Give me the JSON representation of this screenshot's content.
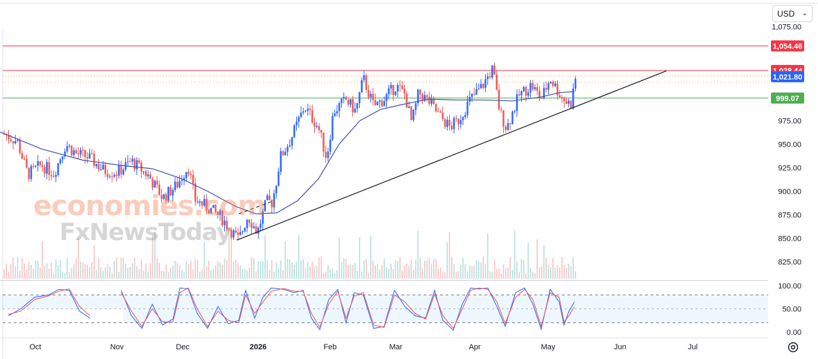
{
  "currency_selector": {
    "label": "USD"
  },
  "watermark": {
    "line1": "economies.com",
    "line2": "FxNewsToday"
  },
  "chart_data": [
    {
      "type": "candlestick",
      "title": "",
      "price_axis": {
        "ticks": [
          1075,
          975,
          950,
          925,
          900,
          875,
          850,
          825
        ],
        "tick_labels": [
          "1,075.00",
          "975.00",
          "950.00",
          "925.00",
          "900.00",
          "875.00",
          "850.00",
          "825.00"
        ],
        "range": [
          820,
          1078
        ],
        "partial_label": "0"
      },
      "time_axis": {
        "labels": [
          "Oct",
          "Nov",
          "Dec",
          "2026",
          "Feb",
          "Mar",
          "Apr",
          "May",
          "Jun",
          "Jul"
        ],
        "bold_label": "2026"
      },
      "horizontal_levels": [
        {
          "value": 1054.46,
          "label": "1,054.46",
          "color": "#f23645"
        },
        {
          "value": 1028.44,
          "label": "1,028.44",
          "color": "#f23645"
        },
        {
          "value": 1021.8,
          "label": "1,021.80",
          "color": "#2962ff"
        },
        {
          "value": 999.07,
          "label": "999.07",
          "color": "#4caf50"
        }
      ],
      "dotted_levels": [
        1022.4,
        1015.9
      ],
      "trendline": {
        "from": [
          "Dec 30",
          848
        ],
        "to": [
          "Jun 20",
          1028
        ]
      },
      "moving_average": {
        "color": "#3f51b5"
      },
      "up_color": "#2962ff",
      "down_color": "#ef5350",
      "anchors": [
        {
          "x": 6,
          "y": 961
        },
        {
          "x": 25,
          "y": 953
        },
        {
          "x": 40,
          "y": 918
        },
        {
          "x": 60,
          "y": 928
        },
        {
          "x": 78,
          "y": 919
        },
        {
          "x": 95,
          "y": 950
        },
        {
          "x": 110,
          "y": 940
        },
        {
          "x": 128,
          "y": 936
        },
        {
          "x": 150,
          "y": 922
        },
        {
          "x": 170,
          "y": 920
        },
        {
          "x": 190,
          "y": 932
        },
        {
          "x": 215,
          "y": 916
        },
        {
          "x": 235,
          "y": 893
        },
        {
          "x": 255,
          "y": 906
        },
        {
          "x": 272,
          "y": 927
        },
        {
          "x": 282,
          "y": 891
        },
        {
          "x": 300,
          "y": 883
        },
        {
          "x": 320,
          "y": 872
        },
        {
          "x": 335,
          "y": 857
        },
        {
          "x": 345,
          "y": 848
        },
        {
          "x": 358,
          "y": 874
        },
        {
          "x": 372,
          "y": 856
        },
        {
          "x": 385,
          "y": 889
        },
        {
          "x": 393,
          "y": 888
        },
        {
          "x": 398,
          "y": 905
        },
        {
          "x": 405,
          "y": 936
        },
        {
          "x": 420,
          "y": 955
        },
        {
          "x": 440,
          "y": 990
        },
        {
          "x": 460,
          "y": 968
        },
        {
          "x": 472,
          "y": 935
        },
        {
          "x": 482,
          "y": 985
        },
        {
          "x": 500,
          "y": 997
        },
        {
          "x": 514,
          "y": 985
        },
        {
          "x": 525,
          "y": 1020
        },
        {
          "x": 540,
          "y": 990
        },
        {
          "x": 555,
          "y": 998
        },
        {
          "x": 572,
          "y": 1012
        },
        {
          "x": 585,
          "y": 1003
        },
        {
          "x": 595,
          "y": 972
        },
        {
          "x": 605,
          "y": 1005
        },
        {
          "x": 620,
          "y": 995
        },
        {
          "x": 635,
          "y": 980
        },
        {
          "x": 650,
          "y": 968
        },
        {
          "x": 662,
          "y": 975
        },
        {
          "x": 680,
          "y": 998
        },
        {
          "x": 695,
          "y": 1010
        },
        {
          "x": 712,
          "y": 1030
        },
        {
          "x": 722,
          "y": 985
        },
        {
          "x": 732,
          "y": 967
        },
        {
          "x": 750,
          "y": 1002
        },
        {
          "x": 768,
          "y": 1013
        },
        {
          "x": 782,
          "y": 998
        },
        {
          "x": 795,
          "y": 1020
        },
        {
          "x": 810,
          "y": 1002
        },
        {
          "x": 818,
          "y": 995
        },
        {
          "x": 825,
          "y": 993
        },
        {
          "x": 832,
          "y": 1022
        }
      ],
      "ma_points": [
        {
          "x": 0,
          "y": 963
        },
        {
          "x": 60,
          "y": 945
        },
        {
          "x": 120,
          "y": 933
        },
        {
          "x": 180,
          "y": 927
        },
        {
          "x": 220,
          "y": 924
        },
        {
          "x": 260,
          "y": 914
        },
        {
          "x": 300,
          "y": 900
        },
        {
          "x": 340,
          "y": 884
        },
        {
          "x": 370,
          "y": 876
        },
        {
          "x": 400,
          "y": 877
        },
        {
          "x": 430,
          "y": 890
        },
        {
          "x": 460,
          "y": 913
        },
        {
          "x": 490,
          "y": 950
        },
        {
          "x": 520,
          "y": 975
        },
        {
          "x": 550,
          "y": 987
        },
        {
          "x": 580,
          "y": 992
        },
        {
          "x": 620,
          "y": 998
        },
        {
          "x": 660,
          "y": 997
        },
        {
          "x": 700,
          "y": 997
        },
        {
          "x": 740,
          "y": 996
        },
        {
          "x": 780,
          "y": 1000
        },
        {
          "x": 810,
          "y": 1005
        },
        {
          "x": 830,
          "y": 1006
        }
      ]
    },
    {
      "type": "line",
      "title": "",
      "indicator": "stochastic",
      "y_ticks": [
        100,
        50,
        0
      ],
      "y_tick_labels": [
        "100.00",
        "50.00",
        "0.00"
      ],
      "bands": [
        80,
        20
      ],
      "mid": 50,
      "series": [
        {
          "color": "#2962ff",
          "values": [
            {
              "x": 12,
              "y": 35
            },
            {
              "x": 30,
              "y": 50
            },
            {
              "x": 50,
              "y": 75
            },
            {
              "x": 70,
              "y": 80
            },
            {
              "x": 85,
              "y": 92
            },
            {
              "x": 100,
              "y": 90
            },
            {
              "x": 115,
              "y": 45
            },
            {
              "x": 130,
              "y": 30
            },
            {
              "x": 175,
              "y": 90
            },
            {
              "x": 190,
              "y": 35
            },
            {
              "x": 205,
              "y": 8
            },
            {
              "x": 220,
              "y": 60
            },
            {
              "x": 235,
              "y": 15
            },
            {
              "x": 250,
              "y": 28
            },
            {
              "x": 260,
              "y": 95
            },
            {
              "x": 272,
              "y": 93
            },
            {
              "x": 285,
              "y": 40
            },
            {
              "x": 300,
              "y": 8
            },
            {
              "x": 315,
              "y": 55
            },
            {
              "x": 330,
              "y": 18
            },
            {
              "x": 345,
              "y": 25
            },
            {
              "x": 355,
              "y": 90
            },
            {
              "x": 368,
              "y": 30
            },
            {
              "x": 380,
              "y": 75
            },
            {
              "x": 392,
              "y": 95
            },
            {
              "x": 410,
              "y": 92
            },
            {
              "x": 425,
              "y": 85
            },
            {
              "x": 438,
              "y": 90
            },
            {
              "x": 450,
              "y": 30
            },
            {
              "x": 462,
              "y": 5
            },
            {
              "x": 475,
              "y": 70
            },
            {
              "x": 488,
              "y": 92
            },
            {
              "x": 500,
              "y": 20
            },
            {
              "x": 512,
              "y": 85
            },
            {
              "x": 525,
              "y": 80
            },
            {
              "x": 540,
              "y": 8
            },
            {
              "x": 555,
              "y": 12
            },
            {
              "x": 570,
              "y": 90
            },
            {
              "x": 585,
              "y": 55
            },
            {
              "x": 600,
              "y": 35
            },
            {
              "x": 615,
              "y": 30
            },
            {
              "x": 628,
              "y": 90
            },
            {
              "x": 640,
              "y": 25
            },
            {
              "x": 655,
              "y": 4
            },
            {
              "x": 668,
              "y": 60
            },
            {
              "x": 680,
              "y": 95
            },
            {
              "x": 692,
              "y": 93
            },
            {
              "x": 705,
              "y": 95
            },
            {
              "x": 718,
              "y": 55
            },
            {
              "x": 730,
              "y": 12
            },
            {
              "x": 745,
              "y": 85
            },
            {
              "x": 758,
              "y": 95
            },
            {
              "x": 770,
              "y": 60
            },
            {
              "x": 782,
              "y": 6
            },
            {
              "x": 795,
              "y": 92
            },
            {
              "x": 808,
              "y": 65
            },
            {
              "x": 815,
              "y": 15
            },
            {
              "x": 822,
              "y": 45
            },
            {
              "x": 830,
              "y": 65
            }
          ]
        },
        {
          "color": "#ef5350",
          "values": [
            {
              "x": 12,
              "y": 38
            },
            {
              "x": 30,
              "y": 45
            },
            {
              "x": 50,
              "y": 70
            },
            {
              "x": 70,
              "y": 78
            },
            {
              "x": 85,
              "y": 88
            },
            {
              "x": 100,
              "y": 93
            },
            {
              "x": 115,
              "y": 55
            },
            {
              "x": 130,
              "y": 35
            },
            {
              "x": 175,
              "y": 85
            },
            {
              "x": 190,
              "y": 45
            },
            {
              "x": 205,
              "y": 12
            },
            {
              "x": 220,
              "y": 50
            },
            {
              "x": 235,
              "y": 22
            },
            {
              "x": 250,
              "y": 22
            },
            {
              "x": 260,
              "y": 85
            },
            {
              "x": 272,
              "y": 95
            },
            {
              "x": 285,
              "y": 50
            },
            {
              "x": 300,
              "y": 12
            },
            {
              "x": 315,
              "y": 45
            },
            {
              "x": 330,
              "y": 25
            },
            {
              "x": 345,
              "y": 20
            },
            {
              "x": 355,
              "y": 80
            },
            {
              "x": 368,
              "y": 40
            },
            {
              "x": 380,
              "y": 65
            },
            {
              "x": 392,
              "y": 88
            },
            {
              "x": 410,
              "y": 94
            },
            {
              "x": 425,
              "y": 88
            },
            {
              "x": 438,
              "y": 88
            },
            {
              "x": 450,
              "y": 40
            },
            {
              "x": 462,
              "y": 10
            },
            {
              "x": 475,
              "y": 60
            },
            {
              "x": 488,
              "y": 88
            },
            {
              "x": 500,
              "y": 30
            },
            {
              "x": 512,
              "y": 78
            },
            {
              "x": 525,
              "y": 85
            },
            {
              "x": 540,
              "y": 15
            },
            {
              "x": 555,
              "y": 10
            },
            {
              "x": 570,
              "y": 80
            },
            {
              "x": 585,
              "y": 65
            },
            {
              "x": 600,
              "y": 40
            },
            {
              "x": 615,
              "y": 28
            },
            {
              "x": 628,
              "y": 82
            },
            {
              "x": 640,
              "y": 35
            },
            {
              "x": 655,
              "y": 8
            },
            {
              "x": 668,
              "y": 50
            },
            {
              "x": 680,
              "y": 90
            },
            {
              "x": 692,
              "y": 95
            },
            {
              "x": 705,
              "y": 92
            },
            {
              "x": 718,
              "y": 65
            },
            {
              "x": 730,
              "y": 18
            },
            {
              "x": 745,
              "y": 75
            },
            {
              "x": 758,
              "y": 92
            },
            {
              "x": 770,
              "y": 70
            },
            {
              "x": 782,
              "y": 12
            },
            {
              "x": 795,
              "y": 85
            },
            {
              "x": 808,
              "y": 75
            },
            {
              "x": 815,
              "y": 22
            },
            {
              "x": 822,
              "y": 35
            },
            {
              "x": 830,
              "y": 55
            }
          ]
        }
      ]
    }
  ]
}
